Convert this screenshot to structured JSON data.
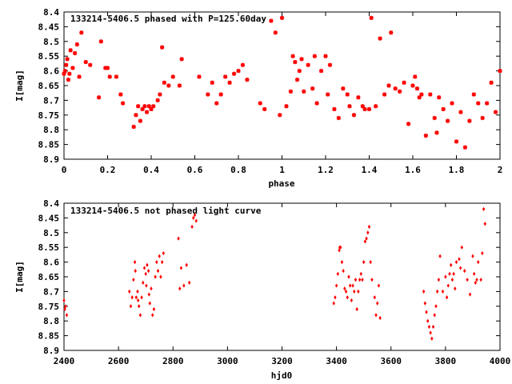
{
  "chart_data": [
    {
      "type": "scatter",
      "title": "133214-5406.5 phased with P=125.60day",
      "xlabel": "phase",
      "ylabel": "I[mag]",
      "xlim": [
        0,
        2
      ],
      "ylim": [
        8.9,
        8.4
      ],
      "y_inverted": true,
      "grid": false,
      "marker": "star",
      "color": "#ff0000",
      "x_ticks": [
        "0",
        "0.2",
        "0.4",
        "0.6",
        "0.8",
        "1",
        "1.2",
        "1.4",
        "1.6",
        "1.8",
        "2"
      ],
      "x_tick_values": [
        0,
        0.2,
        0.4,
        0.6,
        0.8,
        1.0,
        1.2,
        1.4,
        1.6,
        1.8,
        2.0
      ],
      "y_ticks": [
        "8.4",
        "8.45",
        "8.5",
        "8.55",
        "8.6",
        "8.65",
        "8.7",
        "8.75",
        "8.8",
        "8.85",
        "8.9"
      ],
      "y_tick_values": [
        8.4,
        8.45,
        8.5,
        8.55,
        8.6,
        8.65,
        8.7,
        8.75,
        8.8,
        8.85,
        8.9
      ],
      "series": [
        {
          "x": [
            0.0,
            0.005,
            0.01,
            0.015,
            0.02,
            0.025,
            0.03,
            0.04,
            0.05,
            0.06,
            0.07,
            0.08,
            0.1,
            0.12,
            0.16,
            0.17,
            0.19,
            0.2,
            0.21,
            0.24,
            0.26,
            0.27,
            0.32,
            0.33,
            0.34,
            0.35,
            0.36,
            0.37,
            0.38,
            0.39,
            0.4,
            0.41,
            0.43,
            0.44,
            0.45,
            0.46,
            0.48,
            0.5,
            0.53,
            0.54,
            0.62,
            0.66,
            0.68,
            0.7,
            0.72,
            0.74,
            0.76,
            0.78,
            0.8,
            0.82,
            0.84,
            0.9,
            0.92,
            0.95,
            0.97,
            0.99,
            1.0,
            1.02,
            1.04,
            1.05,
            1.06,
            1.07,
            1.08,
            1.09,
            1.1,
            1.12,
            1.14,
            1.15,
            1.16,
            1.18,
            1.2,
            1.21,
            1.22,
            1.24,
            1.26,
            1.28,
            1.3,
            1.31,
            1.33,
            1.35,
            1.37,
            1.38,
            1.4,
            1.41,
            1.43,
            1.45,
            1.47,
            1.49,
            1.5,
            1.52,
            1.54,
            1.56,
            1.58,
            1.6,
            1.61,
            1.62,
            1.63,
            1.64,
            1.66,
            1.68,
            1.7,
            1.71,
            1.72,
            1.74,
            1.76,
            1.78,
            1.8,
            1.82,
            1.84,
            1.86,
            1.88,
            1.9,
            1.92,
            1.94,
            1.96,
            1.98,
            2.0
          ],
          "y": [
            8.61,
            8.6,
            8.58,
            8.56,
            8.63,
            8.61,
            8.53,
            8.59,
            8.54,
            8.51,
            8.62,
            8.47,
            8.57,
            8.58,
            8.69,
            8.5,
            8.59,
            8.59,
            8.62,
            8.62,
            8.68,
            8.71,
            8.79,
            8.75,
            8.72,
            8.77,
            8.73,
            8.72,
            8.74,
            8.72,
            8.73,
            8.72,
            8.7,
            8.68,
            8.52,
            8.64,
            8.65,
            8.62,
            8.65,
            8.56,
            8.62,
            8.68,
            8.64,
            8.71,
            8.68,
            8.62,
            8.64,
            8.61,
            8.6,
            8.58,
            8.63,
            8.71,
            8.73,
            8.43,
            8.47,
            8.75,
            8.42,
            8.72,
            8.67,
            8.55,
            8.57,
            8.63,
            8.6,
            8.56,
            8.67,
            8.58,
            8.66,
            8.55,
            8.71,
            8.6,
            8.55,
            8.68,
            8.58,
            8.73,
            8.76,
            8.66,
            8.68,
            8.72,
            8.75,
            8.69,
            8.72,
            8.73,
            8.73,
            8.42,
            8.72,
            8.49,
            8.68,
            8.65,
            8.47,
            8.66,
            8.67,
            8.64,
            8.78,
            8.65,
            8.62,
            8.66,
            8.69,
            8.68,
            8.82,
            8.68,
            8.76,
            8.81,
            8.69,
            8.73,
            8.77,
            8.71,
            8.84,
            8.74,
            8.86,
            8.77,
            8.68,
            8.71,
            8.76,
            8.71,
            8.64,
            8.74,
            8.6
          ]
        }
      ]
    },
    {
      "type": "scatter",
      "title": "133214-5406.5 not phased light curve",
      "xlabel": "hjd0",
      "ylabel": "I[mag]",
      "xlim": [
        2400,
        4000
      ],
      "ylim": [
        8.9,
        8.4
      ],
      "y_inverted": true,
      "grid": false,
      "marker": "diamond",
      "color": "#ff0000",
      "x_ticks": [
        "2400",
        "2600",
        "2800",
        "3000",
        "3200",
        "3400",
        "3600",
        "3800",
        "4000"
      ],
      "x_tick_values": [
        2400,
        2600,
        2800,
        3000,
        3200,
        3400,
        3600,
        3800,
        4000
      ],
      "y_ticks": [
        "8.4",
        "8.45",
        "8.5",
        "8.55",
        "8.6",
        "8.65",
        "8.7",
        "8.75",
        "8.8",
        "8.85",
        "8.9"
      ],
      "y_tick_values": [
        8.4,
        8.45,
        8.5,
        8.55,
        8.6,
        8.65,
        8.7,
        8.75,
        8.8,
        8.85,
        8.9
      ],
      "series": [
        {
          "x": [
            2400,
            2403,
            2406,
            2410,
            2640,
            2645,
            2650,
            2655,
            2660,
            2662,
            2665,
            2670,
            2672,
            2675,
            2680,
            2685,
            2690,
            2695,
            2700,
            2702,
            2705,
            2710,
            2712,
            2715,
            2720,
            2725,
            2730,
            2735,
            2740,
            2745,
            2750,
            2755,
            2760,
            2765,
            2820,
            2825,
            2830,
            2840,
            2850,
            2860,
            2870,
            2875,
            2880,
            2885,
            3390,
            3395,
            3400,
            3405,
            3410,
            3412,
            3415,
            3420,
            3425,
            3430,
            3435,
            3440,
            3445,
            3450,
            3455,
            3460,
            3465,
            3470,
            3475,
            3480,
            3485,
            3490,
            3495,
            3500,
            3505,
            3510,
            3515,
            3520,
            3525,
            3530,
            3540,
            3545,
            3550,
            3555,
            3560,
            3720,
            3725,
            3730,
            3735,
            3740,
            3745,
            3750,
            3755,
            3760,
            3765,
            3770,
            3775,
            3780,
            3790,
            3800,
            3805,
            3810,
            3815,
            3820,
            3825,
            3830,
            3835,
            3840,
            3850,
            3855,
            3860,
            3870,
            3880,
            3890,
            3900,
            3905,
            3910,
            3915,
            3920,
            3930,
            3935,
            3940,
            3945
          ],
          "y": [
            8.73,
            8.76,
            8.75,
            8.78,
            8.7,
            8.75,
            8.72,
            8.66,
            8.6,
            8.63,
            8.72,
            8.7,
            8.73,
            8.75,
            8.78,
            8.72,
            8.67,
            8.62,
            8.64,
            8.68,
            8.61,
            8.63,
            8.71,
            8.74,
            8.69,
            8.78,
            8.76,
            8.65,
            8.6,
            8.63,
            8.58,
            8.65,
            8.6,
            8.57,
            8.52,
            8.69,
            8.62,
            8.68,
            8.61,
            8.67,
            8.48,
            8.45,
            8.44,
            8.46,
            8.74,
            8.72,
            8.68,
            8.64,
            8.56,
            8.55,
            8.55,
            8.6,
            8.63,
            8.69,
            8.7,
            8.72,
            8.65,
            8.68,
            8.73,
            8.68,
            8.7,
            8.66,
            8.76,
            8.7,
            8.66,
            8.64,
            8.66,
            8.6,
            8.53,
            8.52,
            8.5,
            8.48,
            8.6,
            8.66,
            8.72,
            8.78,
            8.74,
            8.68,
            8.79,
            8.7,
            8.74,
            8.77,
            8.8,
            8.82,
            8.84,
            8.86,
            8.82,
            8.78,
            8.75,
            8.7,
            8.66,
            8.58,
            8.7,
            8.65,
            8.72,
            8.68,
            8.64,
            8.61,
            8.66,
            8.64,
            8.69,
            8.6,
            8.59,
            8.62,
            8.55,
            8.63,
            8.66,
            8.71,
            8.58,
            8.64,
            8.67,
            8.66,
            8.6,
            8.66,
            8.57,
            8.42,
            8.47
          ]
        }
      ]
    }
  ]
}
